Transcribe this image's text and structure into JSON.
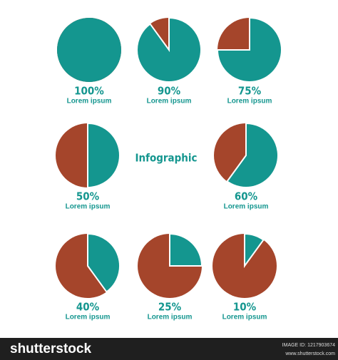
{
  "chart_data": [
    {
      "type": "pie",
      "values": [
        100
      ],
      "value_labels": [
        "100%"
      ],
      "caption": "Lorem ipsum",
      "color": "#14968f",
      "background_color": "#a5452b"
    },
    {
      "type": "pie",
      "values": [
        90
      ],
      "value_labels": [
        "90%"
      ],
      "caption": "Lorem ipsum",
      "color": "#14968f",
      "background_color": "#a5452b"
    },
    {
      "type": "pie",
      "values": [
        75
      ],
      "value_labels": [
        "75%"
      ],
      "caption": "Lorem ipsum",
      "color": "#14968f",
      "background_color": "#a5452b"
    },
    {
      "type": "pie",
      "values": [
        50
      ],
      "value_labels": [
        "50%"
      ],
      "caption": "Lorem ipsum",
      "color": "#14968f",
      "background_color": "#a5452b"
    },
    {
      "type": "pie",
      "values": [
        60
      ],
      "value_labels": [
        "60%"
      ],
      "caption": "Lorem ipsum",
      "color": "#14968f",
      "background_color": "#a5452b"
    },
    {
      "type": "pie",
      "values": [
        40
      ],
      "value_labels": [
        "40%"
      ],
      "caption": "Lorem ipsum",
      "color": "#14968f",
      "background_color": "#a5452b"
    },
    {
      "type": "pie",
      "values": [
        25
      ],
      "value_labels": [
        "25%"
      ],
      "caption": "Lorem ipsum",
      "color": "#14968f",
      "background_color": "#a5452b"
    },
    {
      "type": "pie",
      "values": [
        10
      ],
      "value_labels": [
        "10%"
      ],
      "caption": "Lorem ipsum",
      "color": "#14968f",
      "background_color": "#a5452b"
    }
  ],
  "title": "Infographic",
  "footer": {
    "brand": "shutterstock",
    "image_id": "IMAGE ID: 1217903674",
    "url": "www.shutterstock.com"
  }
}
